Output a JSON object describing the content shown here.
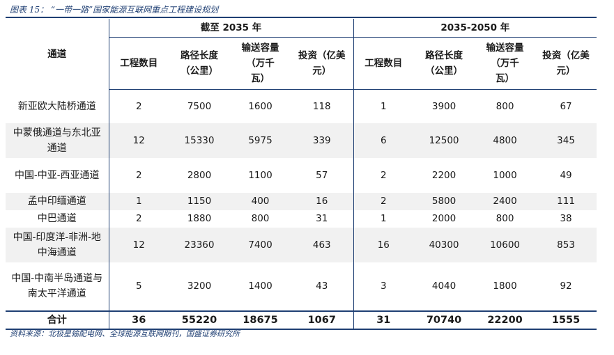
{
  "caption": "图表 15：  “一带一路”国家能源互联网重点工程建设规划",
  "table": {
    "channel_header": "通道",
    "group1_header": "截至 2035 年",
    "group2_header": "2035-2050 年",
    "sub_headers": [
      "工程数目",
      "路径长度（公里）",
      "输送容量（万千瓦）",
      "投资（亿美元）"
    ],
    "rows": [
      {
        "name": "新亚欧大陆桥通道",
        "c2035": [
          "2",
          "7500",
          "1600",
          "118"
        ],
        "c2050": [
          "1",
          "3900",
          "800",
          "67"
        ]
      },
      {
        "name": "中蒙俄通道与东北亚通道",
        "c2035": [
          "12",
          "15330",
          "5975",
          "339"
        ],
        "c2050": [
          "6",
          "12500",
          "4800",
          "345"
        ]
      },
      {
        "name": "中国-中亚-西亚通道",
        "c2035": [
          "2",
          "2800",
          "1100",
          "57"
        ],
        "c2050": [
          "2",
          "2200",
          "1000",
          "49"
        ]
      },
      {
        "name": "孟中印缅通道",
        "c2035": [
          "1",
          "1150",
          "400",
          "16"
        ],
        "c2050": [
          "2",
          "5800",
          "2400",
          "111"
        ]
      },
      {
        "name": "中巴通道",
        "c2035": [
          "2",
          "1880",
          "800",
          "31"
        ],
        "c2050": [
          "1",
          "2000",
          "800",
          "38"
        ]
      },
      {
        "name": "中国-印度洋-非洲-地中海通道",
        "c2035": [
          "12",
          "23360",
          "7400",
          "463"
        ],
        "c2050": [
          "16",
          "40300",
          "10600",
          "853"
        ]
      },
      {
        "name": "中国-中南半岛通道与南太平洋通道",
        "c2035": [
          "5",
          "3200",
          "1400",
          "43"
        ],
        "c2050": [
          "3",
          "4040",
          "1800",
          "92"
        ]
      }
    ],
    "total": {
      "name": "合计",
      "c2035": [
        "36",
        "55220",
        "18675",
        "1067"
      ],
      "c2050": [
        "31",
        "70740",
        "22200",
        "1555"
      ]
    }
  },
  "source": "资料来源：北极星输配电网、全球能源互联网期刊，国盛证券研究所"
}
